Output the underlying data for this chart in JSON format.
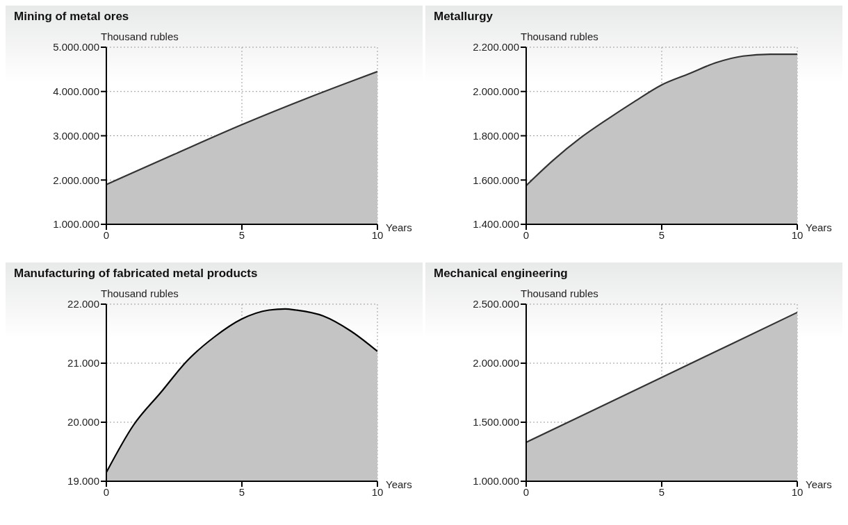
{
  "chart_data": [
    {
      "type": "area",
      "title": "Mining of metal ores",
      "xlabel": "Years",
      "ylabel": "Thousand rubles",
      "x": [
        0,
        2.5,
        5,
        7.5,
        10
      ],
      "series": [
        {
          "color": "#333333",
          "values": [
            1900000,
            2580000,
            3250000,
            3870000,
            4450000
          ]
        }
      ],
      "xlim": [
        0,
        10
      ],
      "xticks": [
        0,
        5,
        10
      ],
      "ylim": [
        1000000,
        5000000
      ],
      "yticks": [
        {
          "value": 1000000,
          "label": "1.000.000"
        },
        {
          "value": 2000000,
          "label": "2.000.000"
        },
        {
          "value": 3000000,
          "label": "3.000.000"
        },
        {
          "value": 4000000,
          "label": "4.000.000"
        },
        {
          "value": 5000000,
          "label": "5.000.000"
        }
      ],
      "grid": true,
      "legend": false
    },
    {
      "type": "area",
      "title": "Metallurgy",
      "xlabel": "Years",
      "ylabel": "Thousand rubles",
      "x": [
        0,
        1,
        2,
        3,
        4,
        5,
        6,
        7,
        8,
        9,
        10
      ],
      "series": [
        {
          "color": "#333333",
          "values": [
            1575000,
            1690000,
            1790000,
            1875000,
            1955000,
            2030000,
            2080000,
            2130000,
            2160000,
            2168000,
            2168000
          ]
        }
      ],
      "xlim": [
        0,
        10
      ],
      "xticks": [
        0,
        5,
        10
      ],
      "ylim": [
        1400000,
        2200000
      ],
      "yticks": [
        {
          "value": 1400000,
          "label": "1.400.000"
        },
        {
          "value": 1600000,
          "label": "1.600.000"
        },
        {
          "value": 1800000,
          "label": "1.800.000"
        },
        {
          "value": 2000000,
          "label": "2.000.000"
        },
        {
          "value": 2200000,
          "label": "2.200.000"
        }
      ],
      "grid": true,
      "legend": false
    },
    {
      "type": "area",
      "title": "Manufacturing of fabricated metal products",
      "xlabel": "Years",
      "ylabel": "Thousand rubles",
      "x": [
        0,
        1,
        2,
        3,
        4,
        5,
        6,
        6.6,
        7,
        8,
        9,
        10
      ],
      "series": [
        {
          "color": "#000000",
          "values": [
            19150,
            19950,
            20500,
            21050,
            21450,
            21750,
            21900,
            21920,
            21900,
            21800,
            21550,
            21200
          ]
        }
      ],
      "xlim": [
        0,
        10
      ],
      "xticks": [
        0,
        5,
        10
      ],
      "ylim": [
        19000,
        22000
      ],
      "yticks": [
        {
          "value": 19000,
          "label": "19.000"
        },
        {
          "value": 20000,
          "label": "20.000"
        },
        {
          "value": 21000,
          "label": "21.000"
        },
        {
          "value": 22000,
          "label": "22.000"
        }
      ],
      "grid": true,
      "legend": false
    },
    {
      "type": "area",
      "title": "Mechanical engineering",
      "xlabel": "Years",
      "ylabel": "Thousand rubles",
      "x": [
        0,
        5,
        10
      ],
      "series": [
        {
          "color": "#333333",
          "values": [
            1330000,
            1880000,
            2430000
          ]
        }
      ],
      "xlim": [
        0,
        10
      ],
      "xticks": [
        0,
        5,
        10
      ],
      "ylim": [
        1000000,
        2500000
      ],
      "yticks": [
        {
          "value": 1000000,
          "label": "1.000.000"
        },
        {
          "value": 1500000,
          "label": "1.500.000"
        },
        {
          "value": 2000000,
          "label": "2.000.000"
        },
        {
          "value": 2500000,
          "label": "2.500.000"
        }
      ],
      "grid": true,
      "legend": false
    }
  ]
}
